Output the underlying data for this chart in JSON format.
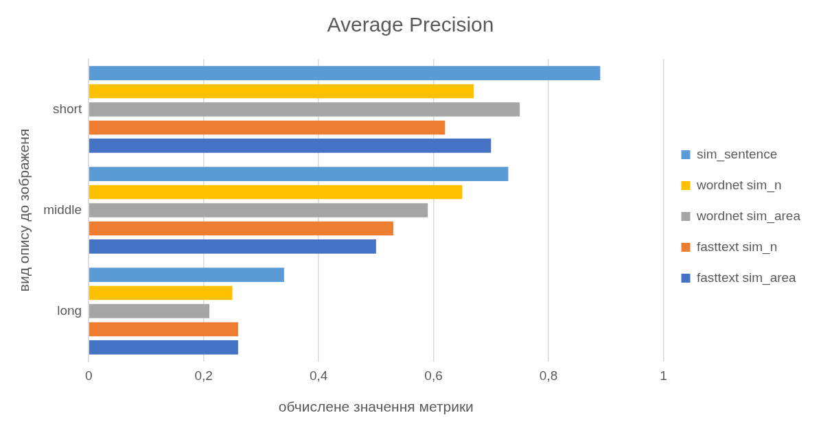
{
  "chart_data": {
    "type": "bar",
    "orientation": "horizontal",
    "title": "Average Precision",
    "xlabel": "обчислене значення метрики",
    "ylabel": "вид опису до зображеня",
    "categories": [
      "short",
      "middle",
      "long"
    ],
    "series": [
      {
        "name": "sim_sentence",
        "color": "#5b9bd5",
        "values": [
          0.89,
          0.73,
          0.34
        ]
      },
      {
        "name": "wordnet sim_n",
        "color": "#ffc000",
        "values": [
          0.67,
          0.65,
          0.25
        ]
      },
      {
        "name": "wordnet sim_area",
        "color": "#a5a5a5",
        "values": [
          0.75,
          0.59,
          0.21
        ]
      },
      {
        "name": "fasttext sim_n",
        "color": "#ed7d31",
        "values": [
          0.62,
          0.53,
          0.26
        ]
      },
      {
        "name": "fasttext sim_area",
        "color": "#4472c4",
        "values": [
          0.7,
          0.5,
          0.26
        ]
      }
    ],
    "xlim": [
      0,
      1
    ],
    "xticks": [
      0,
      {
        "value": 0.2,
        "label": "0,2"
      },
      {
        "value": 0.4,
        "label": "0,4"
      },
      {
        "value": 0.6,
        "label": "0,6"
      },
      {
        "value": 0.8,
        "label": "0,8"
      },
      1
    ],
    "grid": "x",
    "legend": "right"
  }
}
